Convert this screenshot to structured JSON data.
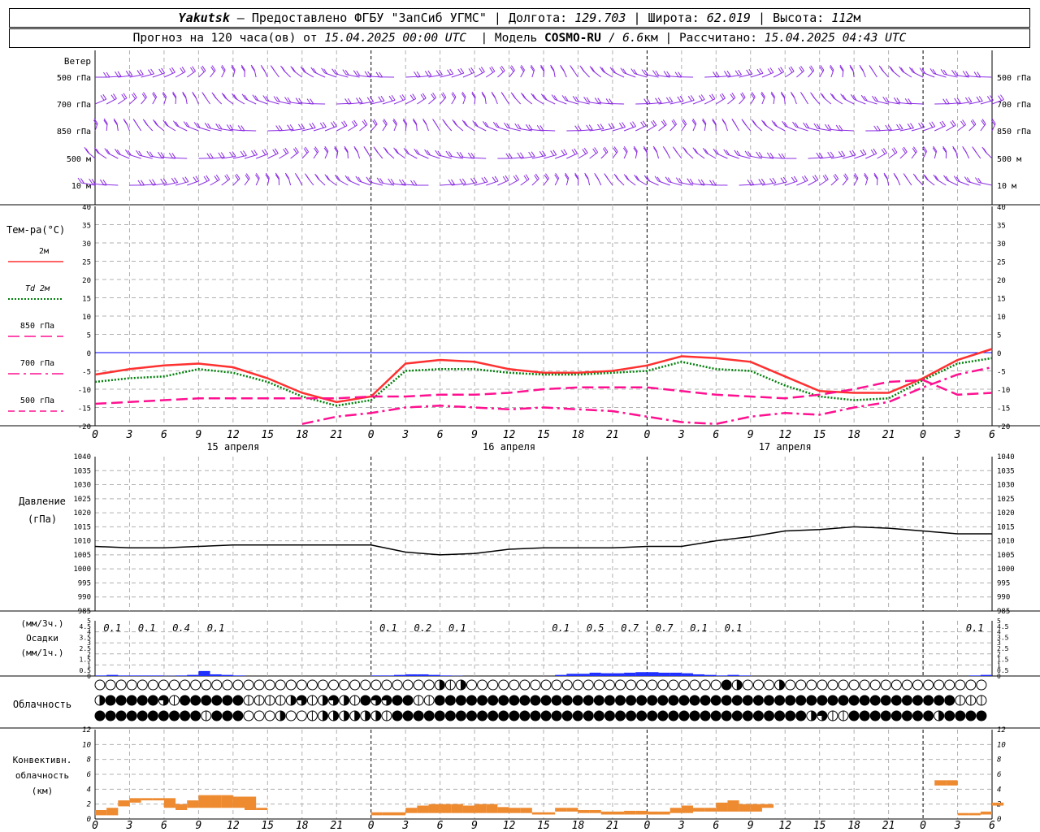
{
  "header": {
    "station": "Yakutsk",
    "provider": "Предоставлено ФГБУ \"ЗапСиб УГМС\"",
    "lon_label": "Долгота:",
    "lon_value": "129.703",
    "lat_label": "Широта:",
    "lat_value": "62.019",
    "alt_label": "Высота:",
    "alt_value": "112",
    "alt_unit": "м",
    "forecast_label": "Прогноз на 120 часа(ов) от",
    "forecast_start": "15.04.2025 00:00 UTC",
    "model_label": "Модель",
    "model_name": "COSMO-RU",
    "model_res": "6.6",
    "model_res_unit": "км",
    "calc_label": "Рассчитано:",
    "calc_time": "15.04.2025 04:43 UTC"
  },
  "colors": {
    "wind": "#8a2be2",
    "t2m": "#ff3030",
    "td2m": "#00800a",
    "t850": "#ff1090",
    "t700": "#ff1090",
    "t500": "#ff1090",
    "pressure": "#000000",
    "precip": "#2030ff",
    "convective": "#ee8a30",
    "zero_line": "#0000ff"
  },
  "x_axis": {
    "hour_labels": [
      "0",
      "3",
      "6",
      "9",
      "12",
      "15",
      "18",
      "21",
      "0",
      "3",
      "6",
      "9",
      "12",
      "15",
      "18",
      "21",
      "0",
      "3",
      "6",
      "9",
      "12",
      "15",
      "18",
      "21",
      "0",
      "3",
      "6"
    ],
    "day_labels": [
      "15 апреля",
      "16 апреля",
      "17 апреля"
    ]
  },
  "wind_panel": {
    "title": "Ветер",
    "levels": [
      "500 гПа",
      "700 гПа",
      "850 гПа",
      "500 м",
      "10  м"
    ]
  },
  "chart_data": [
    {
      "type": "line",
      "panel": "temperature",
      "ylabel": "Тем-ра(°C)",
      "ylim": [
        -20,
        40
      ],
      "ytick_step": 5,
      "grid": true,
      "x_hours": [
        0,
        3,
        6,
        9,
        12,
        15,
        18,
        21,
        24,
        27,
        30,
        33,
        36,
        39,
        42,
        45,
        48,
        51,
        54,
        57,
        60,
        63,
        66,
        69,
        72,
        75,
        78
      ],
      "series": [
        {
          "name": "2м",
          "style": "solid",
          "values": [
            -6,
            -4.5,
            -3.5,
            -3,
            -4,
            -7,
            -11,
            -13.5,
            -12,
            -3,
            -2,
            -2.5,
            -4.5,
            -5.5,
            -5.5,
            -5,
            -3.5,
            -1,
            -1.5,
            -2.5,
            -6.5,
            -10.5,
            -11,
            -11,
            -7,
            -2,
            1
          ]
        },
        {
          "name": "Td 2м",
          "style": "dotted",
          "values": [
            -8,
            -7,
            -6.5,
            -4.5,
            -5.5,
            -8,
            -12,
            -14.5,
            -13,
            -5,
            -4.5,
            -4.5,
            -5.5,
            -6,
            -6,
            -5.5,
            -5,
            -2.5,
            -4.5,
            -5,
            -9,
            -12,
            -13,
            -12.5,
            -7.5,
            -3,
            -1.5
          ]
        },
        {
          "name": "850 гПа",
          "style": "dashed",
          "values": [
            -14,
            -13.5,
            -13,
            -12.5,
            -12.5,
            -12.5,
            -12.5,
            -12.5,
            -12,
            -12,
            -11.5,
            -11.5,
            -11,
            -10,
            -9.5,
            -9.5,
            -9.5,
            -10.5,
            -11.5,
            -12,
            -12.5,
            -11.5,
            -10,
            -8,
            -7.5,
            -11.5,
            -11
          ]
        },
        {
          "name": "700 гПа",
          "style": "dashdot",
          "values": [
            null,
            null,
            null,
            null,
            null,
            null,
            -19.5,
            -17.5,
            -16.5,
            -15,
            -14.5,
            -15,
            -15.5,
            -15,
            -15.5,
            -16,
            -17.5,
            -19,
            -19.5,
            -17.5,
            -16.5,
            -17,
            -15,
            -13.5,
            -9.5,
            -6,
            -4
          ]
        },
        {
          "name": "500 гПа",
          "style": "longdash",
          "values": [
            null,
            null,
            null,
            null,
            null,
            null,
            null,
            null,
            null,
            null,
            null,
            null,
            null,
            null,
            null,
            null,
            null,
            null,
            null,
            null,
            null,
            null,
            null,
            null,
            null,
            null,
            null
          ]
        }
      ]
    },
    {
      "type": "line",
      "panel": "pressure",
      "ylabel": "Давление",
      "yunit": "(гПа)",
      "ylim": [
        985,
        1040
      ],
      "ytick_step": 5,
      "grid": true,
      "x_hours": [
        0,
        3,
        6,
        9,
        12,
        15,
        18,
        21,
        24,
        27,
        30,
        33,
        36,
        39,
        42,
        45,
        48,
        51,
        54,
        57,
        60,
        63,
        66,
        69,
        72,
        75,
        78
      ],
      "series": [
        {
          "name": "давление",
          "values": [
            1008,
            1007.5,
            1007.5,
            1008,
            1008.5,
            1008.5,
            1008.5,
            1008.5,
            1008.5,
            1006,
            1005,
            1005.5,
            1007,
            1007.5,
            1007.5,
            1007.5,
            1008,
            1008,
            1010,
            1011.5,
            1013.5,
            1014,
            1015,
            1014.5,
            1013.5,
            1012.5,
            1012.5
          ]
        }
      ]
    },
    {
      "type": "bar",
      "panel": "precipitation",
      "ylabel": "(мм/3ч.)",
      "ylabel2": "Осадки",
      "ylabel3": "(мм/1ч.)",
      "ylim": [
        0,
        5
      ],
      "yticks": [
        0,
        0.5,
        1,
        1.5,
        2,
        2.5,
        3,
        3.5,
        4,
        4.5,
        5
      ],
      "grid": true,
      "labels_3h": [
        {
          "hour": 1.5,
          "text": "0.1"
        },
        {
          "hour": 4.5,
          "text": "0.1"
        },
        {
          "hour": 7.5,
          "text": "0.4"
        },
        {
          "hour": 10.5,
          "text": "0.1"
        },
        {
          "hour": 25.5,
          "text": "0.1"
        },
        {
          "hour": 28.5,
          "text": "0.2"
        },
        {
          "hour": 31.5,
          "text": "0.1"
        },
        {
          "hour": 40.5,
          "text": "0.1"
        },
        {
          "hour": 43.5,
          "text": "0.5"
        },
        {
          "hour": 46.5,
          "text": "0.7"
        },
        {
          "hour": 49.5,
          "text": "0.7"
        },
        {
          "hour": 52.5,
          "text": "0.1"
        },
        {
          "hour": 55.5,
          "text": "0.1"
        },
        {
          "hour": 76.5,
          "text": "0.1"
        }
      ],
      "hourly_hours": [
        0,
        1,
        2,
        3,
        4,
        5,
        6,
        7,
        8,
        9,
        10,
        11,
        12,
        24,
        25,
        26,
        27,
        28,
        29,
        30,
        31,
        40,
        41,
        42,
        43,
        44,
        45,
        46,
        47,
        48,
        49,
        50,
        51,
        52,
        53,
        54,
        55,
        56,
        76,
        77
      ],
      "hourly_values": [
        0.05,
        0.1,
        0.05,
        0.05,
        0.05,
        0.05,
        0.02,
        0.05,
        0.1,
        0.45,
        0.15,
        0.1,
        0.05,
        0.05,
        0.05,
        0.1,
        0.15,
        0.15,
        0.1,
        0.05,
        0.02,
        0.1,
        0.2,
        0.2,
        0.3,
        0.25,
        0.25,
        0.3,
        0.35,
        0.35,
        0.3,
        0.3,
        0.25,
        0.15,
        0.1,
        0.05,
        0.1,
        0.05,
        0.05,
        0.1
      ]
    },
    {
      "type": "bar",
      "panel": "convective_cloud",
      "ylabel": "Конвективн.",
      "ylabel2": "облачность",
      "ylabel3": "(км)",
      "ylim": [
        0,
        12
      ],
      "yticks": [
        0,
        2,
        4,
        6,
        8,
        10,
        12
      ],
      "grid": true,
      "hourly_hours": [
        0,
        1,
        2,
        3,
        4,
        5,
        6,
        7,
        8,
        9,
        10,
        11,
        12,
        13,
        14,
        24,
        25,
        26,
        27,
        28,
        29,
        30,
        31,
        32,
        33,
        34,
        35,
        36,
        37,
        38,
        39,
        40,
        41,
        42,
        43,
        44,
        45,
        46,
        47,
        48,
        49,
        50,
        51,
        52,
        53,
        54,
        55,
        56,
        57,
        58,
        73,
        74,
        75,
        76,
        77,
        78
      ],
      "bases": [
        0.5,
        0.5,
        1.7,
        2.2,
        2.5,
        2.5,
        1.5,
        1.2,
        1.5,
        1.5,
        1.5,
        1.5,
        1.5,
        1.2,
        1.2,
        0.5,
        0.5,
        0.5,
        0.8,
        0.8,
        0.8,
        0.8,
        0.8,
        0.8,
        0.8,
        0.8,
        0.8,
        0.8,
        0.8,
        0.6,
        0.6,
        1.0,
        1.0,
        0.8,
        0.8,
        0.6,
        0.6,
        0.6,
        0.6,
        0.6,
        0.6,
        0.8,
        0.8,
        1.0,
        1.0,
        1.0,
        1.0,
        1.0,
        1.0,
        1.5,
        4.5,
        4.5,
        0.5,
        0.5,
        0.6,
        1.8
      ],
      "tops": [
        1.2,
        1.5,
        2.5,
        2.8,
        2.8,
        2.8,
        2.8,
        2.0,
        2.5,
        3.2,
        3.2,
        3.2,
        3.0,
        3.0,
        1.5,
        0.9,
        0.9,
        0.9,
        1.5,
        1.8,
        2.0,
        2.0,
        2.0,
        1.8,
        2.0,
        2.0,
        1.6,
        1.5,
        1.5,
        0.9,
        0.9,
        1.5,
        1.5,
        1.2,
        1.2,
        1.0,
        1.0,
        1.1,
        1.1,
        1.0,
        1.0,
        1.5,
        1.8,
        1.5,
        1.5,
        2.2,
        2.5,
        2.0,
        2.0,
        2.0,
        5.2,
        5.2,
        0.8,
        0.8,
        1.0,
        2.2
      ]
    }
  ],
  "cloudiness": {
    "label": "Облачность",
    "rows": [
      {
        "name": "high",
        "codes": "000000000000000000000000000000002120000000000000000000000004200020000000000000000000000000000000000000000000000000111111113111"
      },
      {
        "name": "mid",
        "codes": "24444431444444111123123214334411444444444444444444444444444444444444444444444444411122211444444421111444444444444444444444444111111"
      },
      {
        "name": "low",
        "codes": "44444444441444000200122222214444444444444444444444444444444444444442311444444442444442111111144444444444441444444444444444444444444"
      }
    ]
  }
}
